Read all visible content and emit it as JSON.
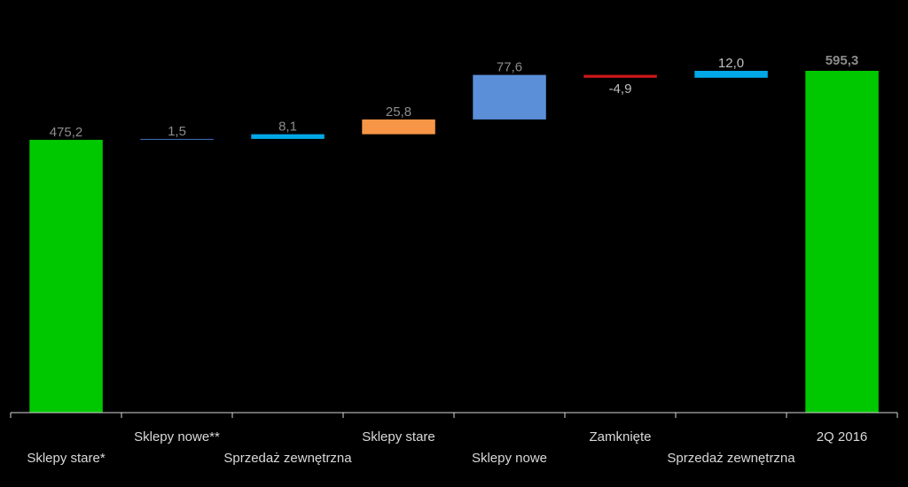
{
  "chart_data": {
    "type": "bar",
    "subtype": "waterfall",
    "title": "",
    "xlabel": "",
    "ylabel": "",
    "ylim": [
      0,
      610
    ],
    "grid": false,
    "legend": "none",
    "categories": [
      "Sklepy stare*",
      "Sklepy nowe**",
      "Sprzedaż zewnętrzna",
      "Sklepy stare",
      "Sklepy nowe",
      "Zamknięte",
      "Sprzedaż zewnętrzna",
      "2Q 2016"
    ],
    "values": [
      475.2,
      1.5,
      8.1,
      25.8,
      77.6,
      -4.9,
      12.0,
      595.3
    ],
    "value_labels": [
      "475,2",
      "1,5",
      "8,1",
      "25,8",
      "77,6",
      "-4,9",
      "12,0",
      "595,3"
    ],
    "kinds": [
      "total",
      "delta",
      "delta",
      "delta",
      "delta",
      "delta",
      "delta",
      "total"
    ],
    "colors": [
      "#00c800",
      "#4472c4",
      "#00a8e8",
      "#f79646",
      "#5b8fd8",
      "#d01818",
      "#00a8e8",
      "#00c800"
    ],
    "label_colors": [
      "#8c8c8c",
      "#8c8c8c",
      "#8c8c8c",
      "#8c8c8c",
      "#8c8c8c",
      "#bfbfbf",
      "#bfbfbf",
      "#8c8c8c"
    ],
    "label_positions": [
      "above",
      "above",
      "above",
      "above",
      "above",
      "below",
      "above",
      "above"
    ],
    "label_emphasis": [
      false,
      false,
      false,
      false,
      false,
      false,
      false,
      true
    ]
  }
}
